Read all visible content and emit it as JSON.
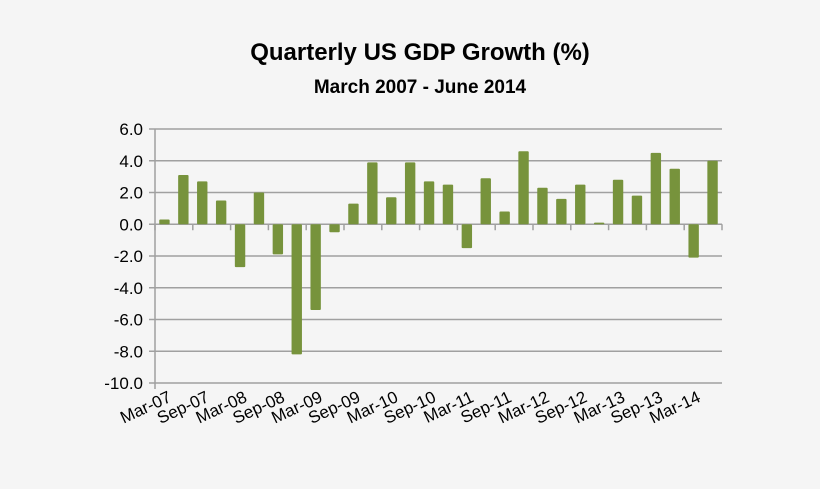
{
  "chart_data": {
    "type": "bar",
    "title": "Quarterly US GDP Growth (%)",
    "subtitle": "March 2007 - June 2014",
    "xlabel": "",
    "ylabel": "",
    "ylim": [
      -10,
      6
    ],
    "yticks": [
      "6.0",
      "4.0",
      "2.0",
      "0.0",
      "-2.0",
      "-4.0",
      "-6.0",
      "-8.0",
      "-10.0"
    ],
    "ytick_values": [
      6,
      4,
      2,
      0,
      -2,
      -4,
      -6,
      -8,
      -10
    ],
    "grid": true,
    "bar_color": "#77933c",
    "x_tick_labels": [
      "Mar-07",
      "Sep-07",
      "Mar-08",
      "Sep-08",
      "Mar-09",
      "Sep-09",
      "Mar-10",
      "Sep-10",
      "Mar-11",
      "Sep-11",
      "Mar-12",
      "Sep-12",
      "Mar-13",
      "Sep-13",
      "Mar-14"
    ],
    "categories": [
      "Mar-07",
      "Jun-07",
      "Sep-07",
      "Dec-07",
      "Mar-08",
      "Jun-08",
      "Sep-08",
      "Dec-08",
      "Mar-09",
      "Jun-09",
      "Sep-09",
      "Dec-09",
      "Mar-10",
      "Jun-10",
      "Sep-10",
      "Dec-10",
      "Mar-11",
      "Jun-11",
      "Sep-11",
      "Dec-11",
      "Mar-12",
      "Jun-12",
      "Sep-12",
      "Dec-12",
      "Mar-13",
      "Jun-13",
      "Sep-13",
      "Dec-13",
      "Mar-14",
      "Jun-14"
    ],
    "values": [
      0.3,
      3.1,
      2.7,
      1.5,
      -2.7,
      2.0,
      -1.9,
      -8.2,
      -5.4,
      -0.5,
      1.3,
      3.9,
      1.7,
      3.9,
      2.7,
      2.5,
      -1.5,
      2.9,
      0.8,
      4.6,
      2.3,
      1.6,
      2.5,
      0.1,
      2.8,
      1.8,
      4.5,
      3.5,
      -2.1,
      4.0
    ]
  }
}
